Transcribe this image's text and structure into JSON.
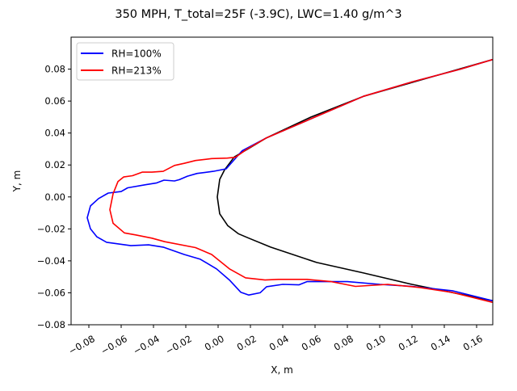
{
  "chart_data": {
    "type": "line",
    "title": "350 MPH, T_total=25F (-3.9C), LWC=1.40 g/m^3",
    "xlabel": "X, m",
    "ylabel": "Y, m",
    "xlim": [
      -0.091,
      0.17
    ],
    "ylim": [
      -0.08,
      0.1
    ],
    "xticks": [
      -0.08,
      -0.06,
      -0.04,
      -0.02,
      0.0,
      0.02,
      0.04,
      0.06,
      0.08,
      0.1,
      0.12,
      0.14,
      0.16
    ],
    "xtick_labels": [
      "−0.08",
      "−0.06",
      "−0.04",
      "−0.02",
      "0.00",
      "0.02",
      "0.04",
      "0.06",
      "0.08",
      "0.10",
      "0.12",
      "0.14",
      "0.16"
    ],
    "yticks": [
      -0.08,
      -0.06,
      -0.04,
      -0.02,
      0.0,
      0.02,
      0.04,
      0.06,
      0.08
    ],
    "ytick_labels": [
      "−0.08",
      "−0.06",
      "−0.04",
      "−0.02",
      "0.00",
      "0.02",
      "0.04",
      "0.06",
      "0.08"
    ],
    "grid": false,
    "legend_position": "top-left",
    "series": [
      {
        "name": "RH=100%",
        "color": "#0000ff",
        "points": [
          [
            0.17,
            0.086
          ],
          [
            0.15,
            0.08
          ],
          [
            0.12,
            0.072
          ],
          [
            0.09,
            0.063
          ],
          [
            0.06,
            0.05
          ],
          [
            0.03,
            0.037
          ],
          [
            0.015,
            0.029
          ],
          [
            0.005,
            0.0176
          ],
          [
            -0.003,
            0.016
          ],
          [
            -0.013,
            0.0147
          ],
          [
            -0.019,
            0.013
          ],
          [
            -0.024,
            0.0108
          ],
          [
            -0.027,
            0.01
          ],
          [
            -0.0335,
            0.0105
          ],
          [
            -0.038,
            0.0088
          ],
          [
            -0.045,
            0.0076
          ],
          [
            -0.056,
            0.0057
          ],
          [
            -0.06,
            0.0034
          ],
          [
            -0.068,
            0.0024
          ],
          [
            -0.074,
            -0.001
          ],
          [
            -0.079,
            -0.0056
          ],
          [
            -0.081,
            -0.013
          ],
          [
            -0.079,
            -0.02
          ],
          [
            -0.075,
            -0.025
          ],
          [
            -0.069,
            -0.0284
          ],
          [
            -0.054,
            -0.0305
          ],
          [
            -0.043,
            -0.03
          ],
          [
            -0.034,
            -0.0314
          ],
          [
            -0.021,
            -0.036
          ],
          [
            -0.011,
            -0.039
          ],
          [
            -0.001,
            -0.045
          ],
          [
            0.007,
            -0.052
          ],
          [
            0.014,
            -0.0596
          ],
          [
            0.019,
            -0.0614
          ],
          [
            0.026,
            -0.06
          ],
          [
            0.03,
            -0.0562
          ],
          [
            0.04,
            -0.0547
          ],
          [
            0.05,
            -0.055
          ],
          [
            0.055,
            -0.053
          ],
          [
            0.065,
            -0.053
          ],
          [
            0.08,
            -0.053
          ],
          [
            0.1,
            -0.0547
          ],
          [
            0.12,
            -0.056
          ],
          [
            0.145,
            -0.0587
          ],
          [
            0.17,
            -0.065
          ]
        ]
      },
      {
        "name": "RH=213%",
        "color": "#ff0000",
        "points": [
          [
            0.17,
            0.086
          ],
          [
            0.15,
            0.08
          ],
          [
            0.12,
            0.072
          ],
          [
            0.09,
            0.063
          ],
          [
            0.06,
            0.05
          ],
          [
            0.03,
            0.037
          ],
          [
            0.018,
            0.03
          ],
          [
            0.0107,
            0.0248
          ],
          [
            0.0057,
            0.0243
          ],
          [
            -0.004,
            0.024
          ],
          [
            -0.014,
            0.0228
          ],
          [
            -0.021,
            0.021
          ],
          [
            -0.027,
            0.0197
          ],
          [
            -0.034,
            0.016
          ],
          [
            -0.041,
            0.0155
          ],
          [
            -0.047,
            0.0155
          ],
          [
            -0.053,
            0.0133
          ],
          [
            -0.0585,
            0.0125
          ],
          [
            -0.062,
            0.0096
          ],
          [
            -0.065,
            0.002
          ],
          [
            -0.067,
            -0.008
          ],
          [
            -0.065,
            -0.0165
          ],
          [
            -0.058,
            -0.0225
          ],
          [
            -0.051,
            -0.0238
          ],
          [
            -0.041,
            -0.0258
          ],
          [
            -0.033,
            -0.028
          ],
          [
            -0.014,
            -0.0317
          ],
          [
            -0.004,
            -0.036
          ],
          [
            0.007,
            -0.045
          ],
          [
            0.017,
            -0.0506
          ],
          [
            0.029,
            -0.052
          ],
          [
            0.0375,
            -0.0516
          ],
          [
            0.055,
            -0.0516
          ],
          [
            0.07,
            -0.053
          ],
          [
            0.085,
            -0.056
          ],
          [
            0.105,
            -0.0547
          ],
          [
            0.125,
            -0.0567
          ],
          [
            0.145,
            -0.0598
          ],
          [
            0.17,
            -0.066
          ]
        ]
      },
      {
        "color": "#000000",
        "points": [
          [
            0.17,
            0.086
          ],
          [
            0.09,
            0.063
          ],
          [
            0.0575,
            0.05
          ],
          [
            0.03,
            0.037
          ],
          [
            0.02,
            0.031
          ],
          [
            0.01,
            0.025
          ],
          [
            0.004,
            0.017
          ],
          [
            0.001,
            0.011
          ],
          [
            -0.0005,
            0.0
          ],
          [
            0.001,
            -0.0106
          ],
          [
            0.006,
            -0.018
          ],
          [
            0.0125,
            -0.023
          ],
          [
            0.019,
            -0.0258
          ],
          [
            0.0325,
            -0.0314
          ],
          [
            0.061,
            -0.041
          ],
          [
            0.09,
            -0.0476
          ],
          [
            0.12,
            -0.0547
          ],
          [
            0.17,
            -0.065
          ]
        ]
      }
    ]
  }
}
